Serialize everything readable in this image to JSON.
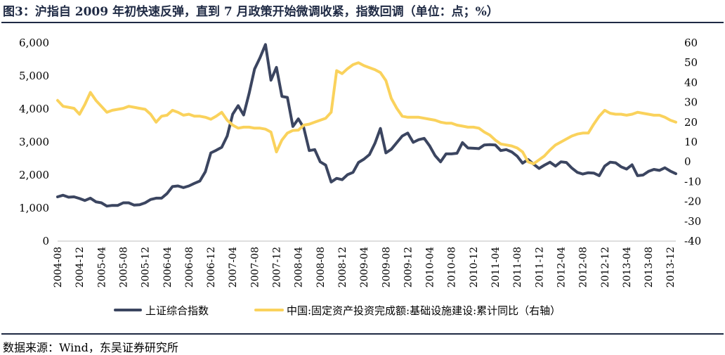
{
  "title": "图3：沪指自 2009 年初快速反弹，直到 7 月政策开始微调收紧，指数回调（单位：点；%）",
  "source": "数据来源：Wind，东吴证券研究所",
  "chart_data": {
    "type": "line",
    "x_tick_labels": [
      "2004-08",
      "2004-12",
      "2005-04",
      "2005-08",
      "2005-12",
      "2006-04",
      "2006-08",
      "2006-12",
      "2007-04",
      "2007-08",
      "2007-12",
      "2008-04",
      "2008-08",
      "2008-12",
      "2009-04",
      "2009-08",
      "2009-12",
      "2010-04",
      "2010-08",
      "2010-12",
      "2011-04",
      "2011-08",
      "2011-12",
      "2012-04",
      "2012-08",
      "2012-12",
      "2013-04",
      "2013-08",
      "2013-12"
    ],
    "x_start": "2004-08",
    "x_end": "2013-12",
    "y_left": {
      "ylim": [
        0,
        6000
      ],
      "ticks": [
        "0",
        "1,000",
        "2,000",
        "3,000",
        "4,000",
        "5,000",
        "6,000"
      ]
    },
    "y_right": {
      "ylim": [
        -40,
        60
      ],
      "ticks": [
        "-40",
        "-30",
        "-20",
        "-10",
        "0",
        "10",
        "20",
        "30",
        "40",
        "50",
        "60"
      ]
    },
    "grid": false,
    "legend_position": "bottom",
    "series": [
      {
        "name": "上证综合指数",
        "axis": "left",
        "color": "#3b4560",
        "values": [
          1340,
          1390,
          1330,
          1340,
          1290,
          1230,
          1300,
          1190,
          1160,
          1060,
          1080,
          1080,
          1160,
          1160,
          1090,
          1100,
          1160,
          1260,
          1300,
          1300,
          1440,
          1650,
          1670,
          1620,
          1670,
          1750,
          1820,
          2100,
          2670,
          2750,
          2840,
          3180,
          3840,
          4100,
          3820,
          4470,
          5210,
          5550,
          5950,
          4870,
          5260,
          4380,
          4350,
          3470,
          3700,
          3430,
          2740,
          2770,
          2400,
          2300,
          1790,
          1900,
          1860,
          2010,
          2080,
          2380,
          2480,
          2620,
          2960,
          3410,
          2670,
          2780,
          2980,
          3180,
          3270,
          2990,
          3070,
          3110,
          2880,
          2590,
          2400,
          2640,
          2640,
          2660,
          2980,
          2820,
          2810,
          2800,
          2910,
          2920,
          2910,
          2740,
          2770,
          2700,
          2570,
          2360,
          2470,
          2330,
          2200,
          2300,
          2390,
          2270,
          2400,
          2380,
          2210,
          2080,
          2030,
          2070,
          2060,
          1980,
          2270,
          2390,
          2370,
          2250,
          2180,
          2310,
          1980,
          2000,
          2110,
          2170,
          2140,
          2220,
          2120,
          2040
        ]
      },
      {
        "name": "中国:固定资产投资完成额:基础设施建设:累计同比（右轴）",
        "axis": "right",
        "color": "#fad25c",
        "values": [
          31,
          28,
          27.5,
          27,
          24,
          29,
          35,
          31,
          28,
          25,
          26,
          26.5,
          27,
          28,
          27.5,
          27,
          26.5,
          24,
          20,
          23,
          23.5,
          26,
          25,
          23.5,
          24,
          23,
          23,
          22.5,
          21.5,
          23,
          25,
          21,
          18.5,
          17,
          17.5,
          17.5,
          17,
          17,
          16.5,
          15,
          5,
          11,
          14.5,
          15.8,
          16,
          18.5,
          19,
          20,
          21,
          22,
          25,
          46,
          44.5,
          47,
          49,
          50,
          48.5,
          47.5,
          46.5,
          45,
          41,
          32,
          27,
          23,
          22.5,
          22.5,
          22.5,
          22,
          21.5,
          21,
          20,
          19.5,
          19.5,
          18.5,
          18,
          17.5,
          17.5,
          17,
          15,
          13.5,
          11,
          9,
          8.5,
          8,
          7,
          5,
          0,
          -1,
          1,
          3,
          6,
          8.5,
          10,
          11.5,
          13,
          14,
          14.5,
          14.5,
          19,
          23,
          26,
          24.5,
          24,
          24,
          23.5,
          24,
          25,
          24.5,
          24,
          23.5,
          23.5,
          22.5,
          21,
          20
        ]
      }
    ]
  }
}
